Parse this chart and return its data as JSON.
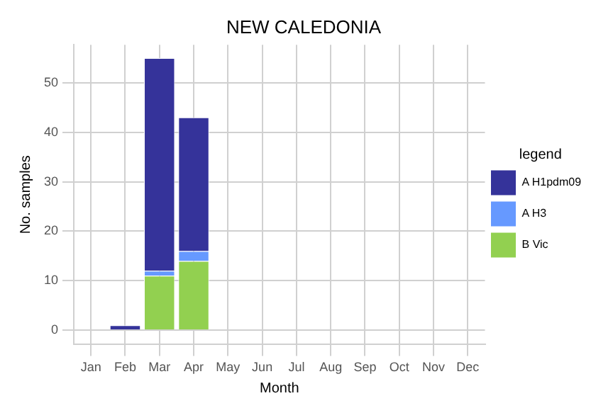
{
  "chart_data": {
    "type": "bar",
    "title": "NEW CALEDONIA",
    "xlabel": "Month",
    "ylabel": "No. samples",
    "legend_title": "legend",
    "categories": [
      "Jan",
      "Feb",
      "Mar",
      "Apr",
      "May",
      "Jun",
      "Jul",
      "Aug",
      "Sep",
      "Oct",
      "Nov",
      "Dec"
    ],
    "stacked": true,
    "series": [
      {
        "name": "B Vic",
        "color": "#92d050",
        "values": [
          0,
          0,
          11,
          14,
          0,
          0,
          0,
          0,
          0,
          0,
          0,
          0
        ]
      },
      {
        "name": "A H3",
        "color": "#6699ff",
        "values": [
          0,
          0,
          1,
          2,
          0,
          0,
          0,
          0,
          0,
          0,
          0,
          0
        ]
      },
      {
        "name": "A H1pdm09",
        "color": "#35339a",
        "values": [
          0,
          1,
          43,
          27,
          0,
          0,
          0,
          0,
          0,
          0,
          0,
          0
        ]
      }
    ],
    "ylim": [
      -2.9,
      57.7
    ],
    "yticks": [
      0,
      10,
      20,
      30,
      40,
      50
    ],
    "grid": true,
    "legend": "right"
  }
}
